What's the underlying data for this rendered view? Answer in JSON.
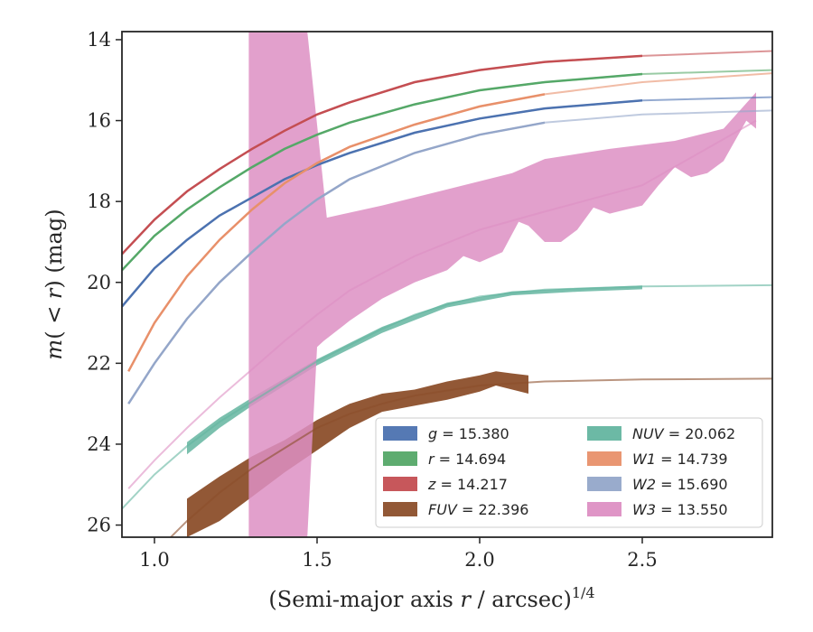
{
  "chart_data": {
    "type": "line",
    "title": "",
    "xlabel": "(Semi-major axis r / arcsec)",
    "xlabel_parts": {
      "prefix": "(Semi-major axis ",
      "var": "r",
      "mid": " / arcsec)",
      "sup": "1/4"
    },
    "ylabel_parts": {
      "m": "m",
      "open": "( < ",
      "r": "r",
      "close": ") (mag)"
    },
    "xlim": [
      0.9,
      2.9
    ],
    "ylim": [
      26.3,
      13.8
    ],
    "y_inverted": true,
    "xticks": [
      1.0,
      1.5,
      2.0,
      2.5
    ],
    "xtick_labels": [
      "1.0",
      "1.5",
      "2.0",
      "2.5"
    ],
    "yticks": [
      14,
      16,
      18,
      20,
      22,
      24,
      26
    ],
    "ytick_labels": [
      "14",
      "16",
      "18",
      "20",
      "22",
      "24",
      "26"
    ],
    "grid": false,
    "legend_position": "lower-right",
    "series": [
      {
        "key": "g",
        "label": "g",
        "value": "= 15.380",
        "color": "#4c72b0",
        "x": [
          0.9,
          1.0,
          1.1,
          1.2,
          1.3,
          1.4,
          1.5,
          1.6,
          1.8,
          2.0,
          2.2,
          2.5,
          2.9
        ],
        "y": [
          20.6,
          19.65,
          18.95,
          18.35,
          17.9,
          17.45,
          17.1,
          16.8,
          16.3,
          15.95,
          15.7,
          15.5,
          15.42
        ],
        "fit_from": 2.7
      },
      {
        "key": "r",
        "label": "r",
        "value": "= 14.694",
        "color": "#55a868",
        "x": [
          0.9,
          1.0,
          1.1,
          1.2,
          1.3,
          1.4,
          1.5,
          1.6,
          1.8,
          2.0,
          2.2,
          2.5,
          2.9
        ],
        "y": [
          19.7,
          18.85,
          18.2,
          17.65,
          17.15,
          16.7,
          16.35,
          16.05,
          15.6,
          15.25,
          15.05,
          14.85,
          14.75
        ],
        "fit_from": 2.8
      },
      {
        "key": "z",
        "label": "z",
        "value": "= 14.217",
        "color": "#c44e52",
        "x": [
          0.9,
          1.0,
          1.1,
          1.2,
          1.3,
          1.4,
          1.5,
          1.6,
          1.8,
          2.0,
          2.2,
          2.5,
          2.9
        ],
        "y": [
          19.3,
          18.45,
          17.75,
          17.2,
          16.7,
          16.25,
          15.85,
          15.55,
          15.05,
          14.75,
          14.55,
          14.4,
          14.28
        ],
        "fit_from": 2.82
      },
      {
        "key": "FUV",
        "label": "FUV",
        "value": "= 22.396",
        "color": "#8c4f2b",
        "x": [
          0.9,
          1.0,
          1.1,
          1.2,
          1.3,
          1.4,
          1.5,
          1.6,
          1.7,
          1.8,
          2.0,
          2.2,
          2.5,
          2.9
        ],
        "y": [
          27.8,
          26.7,
          25.9,
          25.2,
          24.6,
          24.1,
          23.6,
          23.25,
          23.0,
          22.8,
          22.55,
          22.45,
          22.4,
          22.38
        ],
        "band": [
          [
            1.1,
            25.35,
            26.3
          ],
          [
            1.2,
            24.8,
            25.9
          ],
          [
            1.3,
            24.3,
            25.3
          ],
          [
            1.4,
            23.9,
            24.7
          ],
          [
            1.5,
            23.4,
            24.15
          ],
          [
            1.6,
            23.0,
            23.6
          ],
          [
            1.7,
            22.75,
            23.2
          ],
          [
            1.8,
            22.65,
            23.05
          ],
          [
            1.9,
            22.45,
            22.9
          ],
          [
            2.0,
            22.3,
            22.7
          ],
          [
            2.05,
            22.2,
            22.55
          ],
          [
            2.1,
            22.25,
            22.65
          ],
          [
            2.15,
            22.3,
            22.75
          ]
        ]
      },
      {
        "key": "NUV",
        "label": "NUV",
        "value": "= 20.062",
        "color": "#64b5a0",
        "x": [
          0.9,
          1.0,
          1.1,
          1.2,
          1.3,
          1.4,
          1.5,
          1.6,
          1.7,
          1.8,
          1.9,
          2.0,
          2.2,
          2.5,
          2.9
        ],
        "y": [
          25.6,
          24.75,
          24.05,
          23.45,
          22.95,
          22.45,
          21.95,
          21.55,
          21.15,
          20.8,
          20.55,
          20.35,
          20.18,
          20.1,
          20.07
        ],
        "band": [
          [
            1.1,
            23.95,
            24.25
          ],
          [
            1.2,
            23.35,
            23.6
          ],
          [
            1.3,
            22.85,
            23.05
          ],
          [
            1.5,
            21.9,
            22.05
          ],
          [
            1.7,
            21.1,
            21.25
          ],
          [
            1.9,
            20.5,
            20.62
          ],
          [
            2.1,
            20.22,
            20.32
          ],
          [
            2.3,
            20.14,
            20.23
          ],
          [
            2.5,
            20.08,
            20.17
          ]
        ]
      },
      {
        "key": "W1",
        "label": "W1",
        "value": "= 14.739",
        "color": "#e8906a",
        "x": [
          0.92,
          1.0,
          1.1,
          1.2,
          1.3,
          1.4,
          1.5,
          1.6,
          1.8,
          2.0,
          2.2,
          2.5,
          2.9
        ],
        "y": [
          22.2,
          21.0,
          19.85,
          18.95,
          18.2,
          17.55,
          17.05,
          16.65,
          16.1,
          15.65,
          15.35,
          15.05,
          14.83
        ],
        "fit_from": 2.4
      },
      {
        "key": "W2",
        "label": "W2",
        "value": "= 15.690",
        "color": "#94a6c9",
        "x": [
          0.92,
          1.0,
          1.1,
          1.2,
          1.3,
          1.4,
          1.5,
          1.6,
          1.8,
          2.0,
          2.2,
          2.5,
          2.9
        ],
        "y": [
          23.0,
          22.0,
          20.9,
          20.0,
          19.25,
          18.55,
          17.95,
          17.45,
          16.8,
          16.35,
          16.05,
          15.85,
          15.75
        ],
        "fit_from": 2.3
      },
      {
        "key": "W3",
        "label": "W3",
        "value": "= 13.550",
        "color": "#dd8fc3",
        "x": [
          0.92,
          1.0,
          1.1,
          1.2,
          1.3,
          1.4,
          1.5,
          1.6,
          1.8,
          2.0,
          2.2,
          2.5,
          2.85
        ],
        "y": [
          25.1,
          24.4,
          23.6,
          22.85,
          22.15,
          21.45,
          20.8,
          20.2,
          19.35,
          18.7,
          18.25,
          17.6,
          16.0
        ],
        "band_upper": [
          [
            1.29,
            13.8
          ],
          [
            1.47,
            13.8
          ],
          [
            1.53,
            18.4
          ],
          [
            1.7,
            18.1
          ],
          [
            1.9,
            17.7
          ],
          [
            2.1,
            17.3
          ],
          [
            2.2,
            16.95
          ],
          [
            2.4,
            16.7
          ],
          [
            2.6,
            16.5
          ],
          [
            2.75,
            16.2
          ],
          [
            2.85,
            15.3
          ],
          [
            2.85,
            15.2
          ]
        ],
        "band_lower": [
          [
            2.85,
            16.2
          ],
          [
            2.82,
            16.0
          ],
          [
            2.75,
            17.0
          ],
          [
            2.7,
            17.3
          ],
          [
            2.65,
            17.4
          ],
          [
            2.6,
            17.15
          ],
          [
            2.55,
            17.6
          ],
          [
            2.5,
            18.1
          ],
          [
            2.45,
            18.2
          ],
          [
            2.4,
            18.3
          ],
          [
            2.35,
            18.15
          ],
          [
            2.3,
            18.7
          ],
          [
            2.25,
            19.0
          ],
          [
            2.2,
            19.0
          ],
          [
            2.15,
            18.6
          ],
          [
            2.12,
            18.5
          ],
          [
            2.07,
            19.25
          ],
          [
            2.0,
            19.5
          ],
          [
            1.95,
            19.35
          ],
          [
            1.9,
            19.7
          ],
          [
            1.8,
            20.0
          ],
          [
            1.7,
            20.4
          ],
          [
            1.6,
            20.95
          ],
          [
            1.52,
            21.45
          ],
          [
            1.5,
            21.6
          ],
          [
            1.47,
            26.3
          ],
          [
            1.29,
            26.3
          ]
        ]
      }
    ],
    "legend": {
      "left": [
        "g",
        "r",
        "z",
        "FUV"
      ],
      "right": [
        "NUV",
        "W1",
        "W2",
        "W3"
      ]
    }
  }
}
